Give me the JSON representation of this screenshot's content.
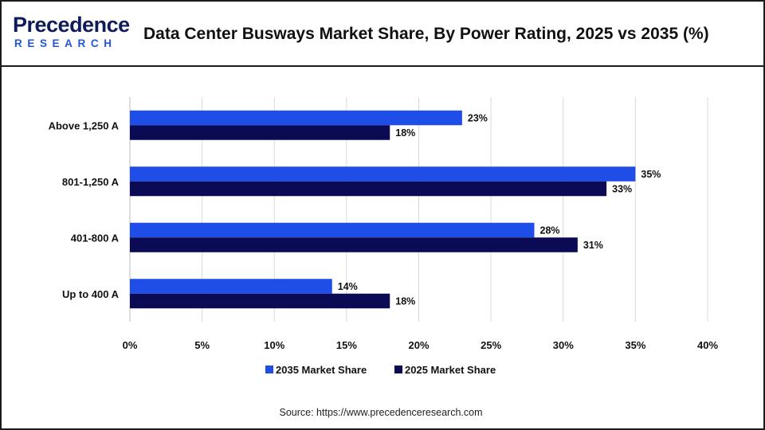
{
  "header": {
    "logo_text": "Precedence",
    "logo_subtext": "RESEARCH",
    "title": "Data Center Busways Market Share, By Power Rating, 2025 vs 2035 (%)"
  },
  "source": "Source: https://www.precedenceresearch.com",
  "colors": {
    "series_2035": "#1f4de8",
    "series_2025": "#0a0a55",
    "grid": "#d9d9d9",
    "logo_dark": "#0f1c5c",
    "logo_blue": "#2255e0"
  },
  "chart_data": {
    "type": "bar",
    "orientation": "horizontal",
    "title": "Data Center Busways Market Share, By Power Rating, 2025 vs 2035 (%)",
    "categories": [
      "Above 1,250 A",
      "801-1,250 A",
      "401-800 A",
      "Up to 400 A"
    ],
    "series": [
      {
        "name": "2035 Market Share",
        "values": [
          23,
          35,
          28,
          14
        ],
        "labels": [
          "23%",
          "35%",
          "28%",
          "14%"
        ]
      },
      {
        "name": "2025 Market Share",
        "values": [
          18,
          33,
          31,
          18
        ],
        "labels": [
          "18%",
          "33%",
          "31%",
          "18%"
        ]
      }
    ],
    "xlim": [
      0,
      40
    ],
    "xticks": [
      0,
      5,
      10,
      15,
      20,
      25,
      30,
      35,
      40
    ],
    "xtick_labels": [
      "0%",
      "5%",
      "10%",
      "15%",
      "20%",
      "25%",
      "30%",
      "35%",
      "40%"
    ],
    "xlabel": "",
    "ylabel": "",
    "grid": "vertical",
    "legend": "bottom-center"
  }
}
